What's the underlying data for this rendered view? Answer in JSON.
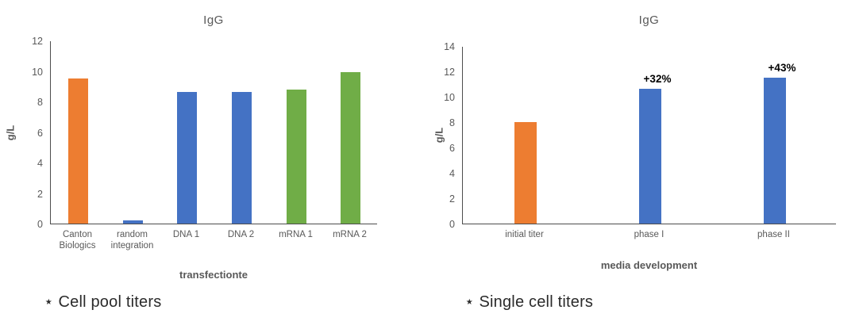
{
  "chart_data": [
    {
      "type": "bar",
      "title": "IgG",
      "ylabel": "g/L",
      "xlabel": "transfectionte",
      "caption": "⋆ Cell pool titers",
      "ylim": [
        0,
        12
      ],
      "yticks": [
        0,
        2,
        4,
        6,
        8,
        10,
        12
      ],
      "grid": false,
      "legend": "none",
      "categories": [
        "Canton\nBiologics",
        "random\nintegration",
        "DNA 1",
        "DNA 2",
        "mRNA 1",
        "mRNA 2"
      ],
      "values": [
        9.5,
        0.2,
        8.6,
        8.6,
        8.8,
        9.9
      ],
      "bar_colors": [
        "#ED7D31",
        "#4472C4",
        "#4472C4",
        "#4472C4",
        "#70AD47",
        "#70AD47"
      ],
      "bar_labels": [
        "",
        "",
        "",
        "",
        "",
        ""
      ]
    },
    {
      "type": "bar",
      "title": "IgG",
      "ylabel": "g/L",
      "xlabel": "media development",
      "caption": "⋆ Single cell titers",
      "ylim": [
        0,
        14
      ],
      "yticks": [
        0,
        2,
        4,
        6,
        8,
        10,
        12,
        14
      ],
      "grid": false,
      "legend": "none",
      "categories": [
        "initial titer",
        "phase I",
        "phase II"
      ],
      "values": [
        8.0,
        10.6,
        11.5
      ],
      "bar_colors": [
        "#ED7D31",
        "#4472C4",
        "#4472C4"
      ],
      "bar_labels": [
        "",
        "+32%",
        "+43%"
      ]
    }
  ],
  "colors": {
    "orange": "#ED7D31",
    "blue": "#4472C4",
    "green": "#70AD47",
    "axis_text": "#595959",
    "axis_line": "#4d4d4d",
    "bar_label_text": "#000000",
    "caption_text": "#2b2b2b"
  }
}
